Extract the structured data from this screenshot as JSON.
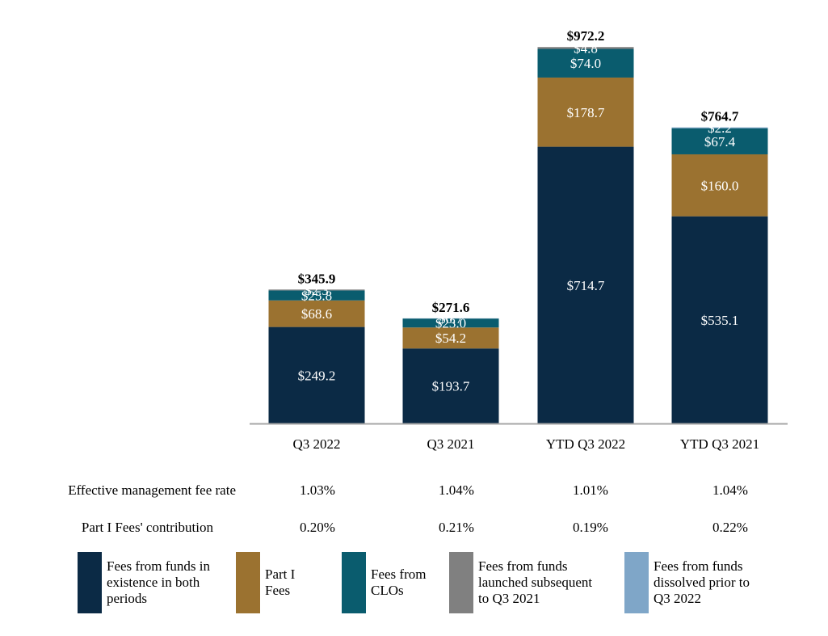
{
  "chart_data": {
    "type": "bar",
    "stacked": true,
    "categories": [
      "Q3 2022",
      "Q3 2021",
      "YTD Q3 2022",
      "YTD Q3 2021"
    ],
    "series": [
      {
        "name": "Fees from funds in existence in both periods",
        "color": "#0b2a45",
        "values": [
          249.2,
          193.7,
          714.7,
          535.1
        ],
        "labels": [
          "$249.2",
          "$193.7",
          "$714.7",
          "$535.1"
        ]
      },
      {
        "name": "Part I Fees",
        "color": "#9b7230",
        "values": [
          68.6,
          54.2,
          178.7,
          160.0
        ],
        "labels": [
          "$68.6",
          "$54.2",
          "$178.7",
          "$160.0"
        ]
      },
      {
        "name": "Fees from CLOs",
        "color": "#0a5c6e",
        "values": [
          25.8,
          23.0,
          74.0,
          67.4
        ],
        "labels": [
          "$25.8",
          "$23.0",
          "$74.0",
          "$67.4"
        ]
      },
      {
        "name": "Fees from funds launched subsequent to Q3 2021",
        "color": "#808080",
        "values": [
          2.3,
          0,
          4.8,
          0
        ],
        "labels": [
          "$2.3",
          "",
          "$4.8",
          ""
        ]
      },
      {
        "name": "Fees from funds dissolved prior to Q3 2022",
        "color": "#7fa6c8",
        "values": [
          0,
          0.7,
          0,
          2.2
        ],
        "labels": [
          "",
          "$0.7",
          "",
          "$2.2"
        ]
      }
    ],
    "totals": [
      345.9,
      271.6,
      972.2,
      764.7
    ],
    "total_labels": [
      "$345.9",
      "$271.6",
      "$972.2",
      "$764.7"
    ],
    "ylim": [
      0,
      1000
    ],
    "grid": false,
    "legend_position": "bottom"
  },
  "metrics": [
    {
      "label": "Effective management fee rate",
      "values": [
        "1.03%",
        "1.04%",
        "1.01%",
        "1.04%"
      ]
    },
    {
      "label": "Part I Fees' contribution",
      "values": [
        "0.20%",
        "0.21%",
        "0.19%",
        "0.22%"
      ]
    }
  ],
  "legend": [
    {
      "text": "Fees from funds in\nexistence in both\nperiods",
      "color": "#0b2a45"
    },
    {
      "text": "Part I\nFees",
      "color": "#9b7230"
    },
    {
      "text": "Fees from\nCLOs",
      "color": "#0a5c6e"
    },
    {
      "text": "Fees from funds\nlaunched subsequent\nto Q3 2021",
      "color": "#808080"
    },
    {
      "text": "Fees from funds\ndissolved prior to\nQ3 2022",
      "color": "#7fa6c8"
    }
  ]
}
